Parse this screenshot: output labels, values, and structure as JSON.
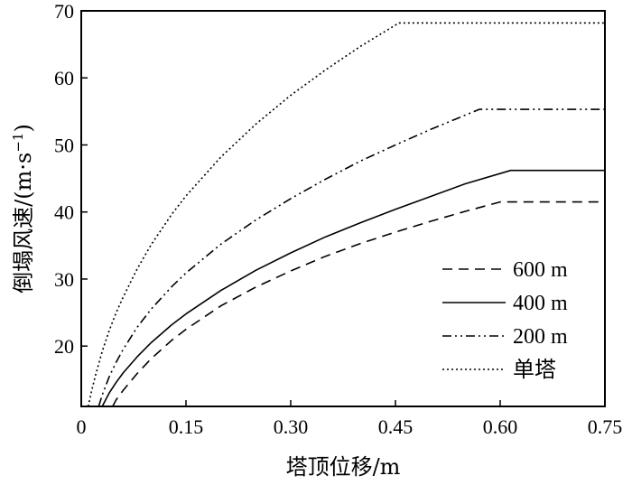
{
  "chart_data": {
    "type": "line",
    "title": "",
    "xlabel": "塔顶位移/m",
    "ylabel": "倒塌风速/(m·s",
    "ylabel_sup": "−1",
    "ylabel_end": ")",
    "xlim": [
      0,
      0.75
    ],
    "ylim": [
      11,
      70
    ],
    "xticks": [
      0,
      0.15,
      0.3,
      0.45,
      0.6,
      0.75
    ],
    "xtick_labels": [
      "0",
      "0.15",
      "0.30",
      "0.45",
      "0.60",
      "0.75"
    ],
    "yticks": [
      20,
      30,
      40,
      50,
      60,
      70
    ],
    "ytick_labels": [
      "20",
      "30",
      "40",
      "50",
      "60",
      "70"
    ],
    "grid": false,
    "legend_position": "bottom-right",
    "series": [
      {
        "name": "600 m",
        "style": "dashed",
        "x": [
          0.045,
          0.05,
          0.06,
          0.08,
          0.1,
          0.13,
          0.15,
          0.2,
          0.25,
          0.3,
          0.35,
          0.4,
          0.45,
          0.5,
          0.55,
          0.6,
          0.75
        ],
        "y": [
          11.0,
          12.0,
          13.4,
          15.9,
          18.1,
          20.9,
          22.5,
          26.0,
          28.8,
          31.2,
          33.4,
          35.3,
          37.0,
          38.6,
          40.1,
          41.5,
          41.5
        ]
      },
      {
        "name": "400 m",
        "style": "solid",
        "x": [
          0.03,
          0.04,
          0.05,
          0.06,
          0.08,
          0.1,
          0.13,
          0.15,
          0.2,
          0.25,
          0.3,
          0.35,
          0.4,
          0.45,
          0.5,
          0.55,
          0.615,
          0.75
        ],
        "y": [
          11.0,
          13.0,
          14.6,
          16.0,
          18.4,
          20.5,
          23.2,
          24.8,
          28.3,
          31.3,
          33.9,
          36.3,
          38.4,
          40.4,
          42.3,
          44.2,
          46.2,
          46.2
        ]
      },
      {
        "name": "200 m",
        "style": "dashdotdot",
        "x": [
          0.025,
          0.03,
          0.04,
          0.05,
          0.06,
          0.08,
          0.1,
          0.13,
          0.15,
          0.2,
          0.25,
          0.3,
          0.35,
          0.4,
          0.45,
          0.5,
          0.57,
          0.75
        ],
        "y": [
          11.0,
          12.7,
          15.4,
          17.6,
          19.5,
          22.8,
          25.5,
          28.9,
          30.9,
          35.2,
          38.8,
          42.0,
          44.9,
          47.6,
          50.0,
          52.3,
          55.3,
          55.3
        ]
      },
      {
        "name": "单塔",
        "style": "dotted",
        "x": [
          0.01,
          0.015,
          0.02,
          0.03,
          0.04,
          0.05,
          0.06,
          0.08,
          0.1,
          0.13,
          0.15,
          0.2,
          0.25,
          0.3,
          0.35,
          0.4,
          0.455,
          0.75
        ],
        "y": [
          11.0,
          13.4,
          15.5,
          19.2,
          22.3,
          25.0,
          27.3,
          31.5,
          35.1,
          39.7,
          42.4,
          48.2,
          53.1,
          57.4,
          61.2,
          64.7,
          68.2,
          68.2
        ]
      }
    ]
  }
}
